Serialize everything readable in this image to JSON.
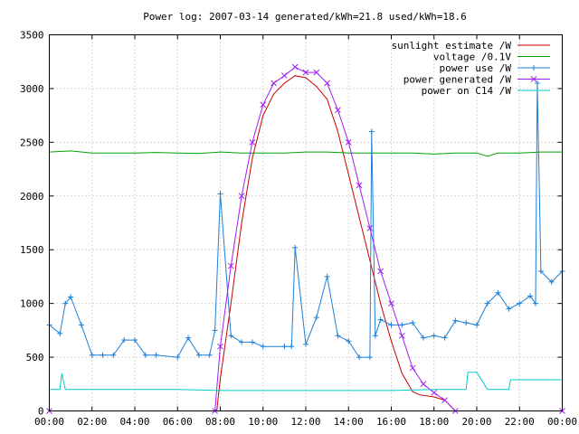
{
  "chart_data": {
    "type": "line",
    "title": "Power log: 2007-03-14 generated/kWh=21.8 used/kWh=18.6",
    "xlabel": "",
    "ylabel": "",
    "xlim": [
      "00:00",
      "24:00"
    ],
    "ylim": [
      0,
      3500
    ],
    "x_ticks": [
      "00:00",
      "02:00",
      "04:00",
      "06:00",
      "08:00",
      "10:00",
      "12:00",
      "14:00",
      "16:00",
      "18:00",
      "20:00",
      "22:00",
      "00:00"
    ],
    "y_ticks": [
      "0",
      "500",
      "1000",
      "1500",
      "2000",
      "2500",
      "3000",
      "3500"
    ],
    "grid": true,
    "legend_position": "top-right",
    "series": [
      {
        "name": "sunlight estimate /W",
        "color": "#cc0000",
        "style": "line",
        "x": [
          "00:00",
          "07:50",
          "08:00",
          "08:30",
          "09:00",
          "09:30",
          "10:00",
          "10:30",
          "11:00",
          "11:30",
          "12:00",
          "12:30",
          "13:00",
          "13:30",
          "14:00",
          "14:30",
          "15:00",
          "15:30",
          "16:00",
          "16:30",
          "17:00",
          "17:20",
          "18:00",
          "18:30",
          "19:00",
          "24:00"
        ],
        "values": [
          0,
          0,
          300,
          1000,
          1750,
          2350,
          2750,
          2950,
          3050,
          3120,
          3100,
          3020,
          2900,
          2600,
          2200,
          1800,
          1400,
          1000,
          650,
          350,
          180,
          150,
          130,
          100,
          0,
          0
        ]
      },
      {
        "name": "voltage /0.1V",
        "color": "#00a000",
        "style": "line",
        "x": [
          "00:00",
          "01:00",
          "02:00",
          "03:00",
          "04:00",
          "05:00",
          "06:00",
          "07:00",
          "08:00",
          "09:00",
          "10:00",
          "11:00",
          "12:00",
          "13:00",
          "14:00",
          "15:00",
          "16:00",
          "17:00",
          "18:00",
          "19:00",
          "20:00",
          "20:30",
          "21:00",
          "22:00",
          "23:00",
          "24:00"
        ],
        "values": [
          2410,
          2420,
          2400,
          2400,
          2400,
          2405,
          2400,
          2395,
          2410,
          2400,
          2400,
          2400,
          2410,
          2410,
          2400,
          2400,
          2400,
          2400,
          2390,
          2400,
          2400,
          2370,
          2400,
          2400,
          2410,
          2410
        ]
      },
      {
        "name": "power use /W",
        "color": "#1e7fd6",
        "style": "line+plus",
        "x": [
          "00:00",
          "00:30",
          "00:45",
          "01:00",
          "01:30",
          "02:00",
          "02:30",
          "03:00",
          "03:30",
          "04:00",
          "04:30",
          "05:00",
          "06:00",
          "06:30",
          "07:00",
          "07:30",
          "07:45",
          "08:00",
          "08:30",
          "09:00",
          "09:30",
          "10:00",
          "11:00",
          "11:20",
          "11:30",
          "12:00",
          "12:30",
          "13:00",
          "13:30",
          "14:00",
          "14:30",
          "15:00",
          "15:05",
          "15:15",
          "15:30",
          "16:00",
          "16:30",
          "17:00",
          "17:30",
          "18:00",
          "18:30",
          "19:00",
          "19:30",
          "20:00",
          "20:30",
          "21:00",
          "21:30",
          "22:00",
          "22:30",
          "22:45",
          "22:50",
          "23:00",
          "23:30",
          "24:00"
        ],
        "values": [
          800,
          720,
          1000,
          1060,
          800,
          520,
          520,
          520,
          660,
          660,
          520,
          520,
          500,
          680,
          520,
          520,
          750,
          2020,
          700,
          640,
          640,
          600,
          600,
          600,
          1520,
          620,
          870,
          1250,
          700,
          650,
          500,
          500,
          2600,
          700,
          850,
          800,
          800,
          820,
          680,
          700,
          680,
          840,
          820,
          800,
          1000,
          1100,
          950,
          1000,
          1070,
          1000,
          3050,
          1300,
          1200,
          1300
        ]
      },
      {
        "name": "power generated /W",
        "color": "#a020f0",
        "style": "line+cross",
        "x": [
          "00:00",
          "07:45",
          "08:00",
          "08:30",
          "09:00",
          "09:30",
          "10:00",
          "10:30",
          "11:00",
          "11:30",
          "12:00",
          "12:30",
          "13:00",
          "13:30",
          "14:00",
          "14:30",
          "15:00",
          "15:30",
          "16:00",
          "16:30",
          "17:00",
          "17:30",
          "18:00",
          "18:30",
          "19:00",
          "24:00"
        ],
        "values": [
          0,
          0,
          600,
          1350,
          2000,
          2500,
          2850,
          3050,
          3120,
          3200,
          3150,
          3150,
          3050,
          2800,
          2500,
          2100,
          1700,
          1300,
          1000,
          700,
          400,
          250,
          170,
          100,
          0,
          0
        ]
      },
      {
        "name": "power on C14 /W",
        "color": "#00cccc",
        "style": "line",
        "x": [
          "00:00",
          "00:30",
          "00:35",
          "00:45",
          "01:00",
          "06:00",
          "08:00",
          "12:00",
          "16:00",
          "18:00",
          "19:30",
          "19:35",
          "20:00",
          "20:30",
          "21:30",
          "21:35",
          "22:00",
          "23:00",
          "24:00"
        ],
        "values": [
          200,
          200,
          350,
          200,
          200,
          200,
          190,
          190,
          190,
          200,
          200,
          360,
          360,
          200,
          200,
          290,
          290,
          290,
          290
        ]
      }
    ]
  }
}
